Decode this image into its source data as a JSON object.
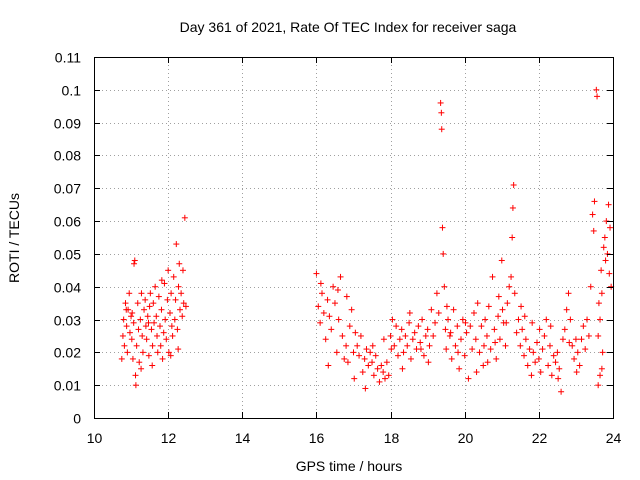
{
  "chart_data": {
    "type": "scatter",
    "title": "Day 361 of 2021, Rate Of TEC Index for receiver saga",
    "xlabel": "GPS time / hours",
    "ylabel": "ROTI / TECUs",
    "xlim": [
      10,
      24
    ],
    "ylim": [
      0,
      0.11
    ],
    "xticks": [
      10,
      12,
      14,
      16,
      18,
      20,
      22,
      24
    ],
    "yticks": [
      0,
      0.01,
      0.02,
      0.03,
      0.04,
      0.05,
      0.06,
      0.07,
      0.08,
      0.09,
      0.1,
      0.11
    ],
    "xtick_labels": [
      "10",
      "12",
      "14",
      "16",
      "18",
      "20",
      "22",
      "24"
    ],
    "ytick_labels": [
      "0",
      "0.01",
      "0.02",
      "0.03",
      "0.04",
      "0.05",
      "0.06",
      "0.07",
      "0.08",
      "0.09",
      "0.1",
      "0.11"
    ],
    "grid": true,
    "marker": "+",
    "color": "#ff0000",
    "series": [
      {
        "name": "ROTI",
        "points": [
          [
            10.75,
            0.018
          ],
          [
            10.78,
            0.025
          ],
          [
            10.8,
            0.03
          ],
          [
            10.82,
            0.022
          ],
          [
            10.85,
            0.035
          ],
          [
            10.88,
            0.028
          ],
          [
            10.9,
            0.02
          ],
          [
            10.92,
            0.033
          ],
          [
            10.95,
            0.038
          ],
          [
            10.97,
            0.026
          ],
          [
            11.0,
            0.031
          ],
          [
            11.02,
            0.024
          ],
          [
            11.05,
            0.018
          ],
          [
            11.07,
            0.029
          ],
          [
            11.08,
            0.047
          ],
          [
            11.1,
            0.048
          ],
          [
            11.12,
            0.013
          ],
          [
            11.13,
            0.01
          ],
          [
            11.15,
            0.022
          ],
          [
            11.18,
            0.035
          ],
          [
            11.2,
            0.027
          ],
          [
            11.22,
            0.017
          ],
          [
            11.25,
            0.03
          ],
          [
            11.28,
            0.038
          ],
          [
            11.3,
            0.025
          ],
          [
            11.32,
            0.02
          ],
          [
            11.35,
            0.033
          ],
          [
            11.38,
            0.036
          ],
          [
            11.4,
            0.028
          ],
          [
            11.42,
            0.024
          ],
          [
            11.45,
            0.031
          ],
          [
            11.48,
            0.019
          ],
          [
            11.5,
            0.034
          ],
          [
            11.52,
            0.038
          ],
          [
            11.55,
            0.027
          ],
          [
            11.58,
            0.022
          ],
          [
            11.6,
            0.035
          ],
          [
            11.62,
            0.029
          ],
          [
            11.65,
            0.04
          ],
          [
            11.68,
            0.031
          ],
          [
            11.7,
            0.025
          ],
          [
            11.72,
            0.02
          ],
          [
            11.75,
            0.037
          ],
          [
            11.78,
            0.028
          ],
          [
            11.8,
            0.022
          ],
          [
            11.82,
            0.033
          ],
          [
            11.85,
            0.018
          ],
          [
            11.88,
            0.026
          ],
          [
            11.9,
            0.041
          ],
          [
            11.92,
            0.03
          ],
          [
            11.95,
            0.024
          ],
          [
            11.98,
            0.036
          ],
          [
            12.0,
            0.045
          ],
          [
            12.02,
            0.02
          ],
          [
            12.05,
            0.032
          ],
          [
            12.08,
            0.038
          ],
          [
            12.1,
            0.028
          ],
          [
            12.12,
            0.025
          ],
          [
            12.15,
            0.043
          ],
          [
            12.18,
            0.03
          ],
          [
            12.2,
            0.036
          ],
          [
            12.22,
            0.053
          ],
          [
            12.25,
            0.027
          ],
          [
            12.28,
            0.04
          ],
          [
            12.3,
            0.047
          ],
          [
            12.32,
            0.033
          ],
          [
            12.35,
            0.038
          ],
          [
            12.38,
            0.031
          ],
          [
            12.4,
            0.045
          ],
          [
            12.42,
            0.035
          ],
          [
            12.45,
            0.061
          ],
          [
            12.48,
            0.034
          ],
          [
            11.03,
            0.032
          ],
          [
            11.27,
            0.015
          ],
          [
            11.57,
            0.016
          ],
          [
            11.83,
            0.042
          ],
          [
            12.07,
            0.019
          ],
          [
            12.27,
            0.021
          ],
          [
            10.87,
            0.033
          ],
          [
            11.47,
            0.029
          ],
          [
            16.0,
            0.044
          ],
          [
            16.05,
            0.034
          ],
          [
            16.1,
            0.029
          ],
          [
            16.15,
            0.038
          ],
          [
            16.2,
            0.032
          ],
          [
            16.25,
            0.024
          ],
          [
            16.3,
            0.036
          ],
          [
            16.35,
            0.031
          ],
          [
            16.4,
            0.027
          ],
          [
            16.45,
            0.04
          ],
          [
            16.5,
            0.035
          ],
          [
            16.55,
            0.02
          ],
          [
            16.6,
            0.03
          ],
          [
            16.65,
            0.043
          ],
          [
            16.7,
            0.025
          ],
          [
            16.75,
            0.018
          ],
          [
            16.8,
            0.022
          ],
          [
            16.85,
            0.017
          ],
          [
            16.9,
            0.028
          ],
          [
            16.95,
            0.033
          ],
          [
            17.0,
            0.02
          ],
          [
            17.05,
            0.026
          ],
          [
            17.1,
            0.022
          ],
          [
            17.15,
            0.019
          ],
          [
            17.2,
            0.025
          ],
          [
            17.25,
            0.014
          ],
          [
            17.3,
            0.018
          ],
          [
            17.35,
            0.021
          ],
          [
            17.4,
            0.016
          ],
          [
            17.45,
            0.02
          ],
          [
            17.5,
            0.017
          ],
          [
            17.55,
            0.013
          ],
          [
            17.6,
            0.019
          ],
          [
            17.65,
            0.015
          ],
          [
            17.7,
            0.011
          ],
          [
            17.75,
            0.016
          ],
          [
            17.8,
            0.014
          ],
          [
            17.85,
            0.012
          ],
          [
            17.9,
            0.017
          ],
          [
            17.95,
            0.013
          ],
          [
            18.0,
            0.025
          ],
          [
            18.05,
            0.03
          ],
          [
            18.1,
            0.022
          ],
          [
            18.15,
            0.028
          ],
          [
            18.2,
            0.019
          ],
          [
            18.25,
            0.024
          ],
          [
            18.3,
            0.027
          ],
          [
            18.35,
            0.02
          ],
          [
            18.4,
            0.025
          ],
          [
            18.45,
            0.022
          ],
          [
            18.5,
            0.029
          ],
          [
            18.55,
            0.018
          ],
          [
            18.6,
            0.024
          ],
          [
            18.65,
            0.026
          ],
          [
            18.7,
            0.021
          ],
          [
            18.75,
            0.028
          ],
          [
            18.8,
            0.023
          ],
          [
            18.85,
            0.03
          ],
          [
            18.9,
            0.019
          ],
          [
            18.95,
            0.025
          ],
          [
            19.0,
            0.027
          ],
          [
            19.05,
            0.022
          ],
          [
            19.1,
            0.033
          ],
          [
            19.15,
            0.025
          ],
          [
            19.2,
            0.029
          ],
          [
            19.25,
            0.038
          ],
          [
            19.3,
            0.032
          ],
          [
            19.35,
            0.096
          ],
          [
            19.37,
            0.093
          ],
          [
            19.38,
            0.088
          ],
          [
            19.4,
            0.058
          ],
          [
            19.42,
            0.05
          ],
          [
            19.45,
            0.04
          ],
          [
            19.48,
            0.027
          ],
          [
            19.5,
            0.021
          ],
          [
            19.55,
            0.03
          ],
          [
            19.6,
            0.025
          ],
          [
            19.65,
            0.018
          ],
          [
            19.7,
            0.033
          ],
          [
            19.75,
            0.022
          ],
          [
            19.8,
            0.028
          ],
          [
            19.85,
            0.015
          ],
          [
            19.9,
            0.024
          ],
          [
            19.95,
            0.03
          ],
          [
            20.0,
            0.019
          ],
          [
            20.05,
            0.026
          ],
          [
            20.1,
            0.012
          ],
          [
            20.15,
            0.028
          ],
          [
            20.2,
            0.021
          ],
          [
            20.25,
            0.032
          ],
          [
            20.3,
            0.024
          ],
          [
            20.35,
            0.035
          ],
          [
            20.4,
            0.02
          ],
          [
            20.45,
            0.028
          ],
          [
            20.5,
            0.016
          ],
          [
            20.55,
            0.03
          ],
          [
            20.6,
            0.025
          ],
          [
            20.65,
            0.034
          ],
          [
            20.7,
            0.021
          ],
          [
            20.75,
            0.043
          ],
          [
            20.8,
            0.027
          ],
          [
            20.85,
            0.018
          ],
          [
            20.9,
            0.031
          ],
          [
            20.95,
            0.024
          ],
          [
            21.0,
            0.048
          ],
          [
            21.05,
            0.029
          ],
          [
            21.1,
            0.022
          ],
          [
            21.15,
            0.035
          ],
          [
            21.2,
            0.04
          ],
          [
            21.25,
            0.043
          ],
          [
            21.28,
            0.055
          ],
          [
            21.3,
            0.064
          ],
          [
            21.32,
            0.071
          ],
          [
            21.35,
            0.038
          ],
          [
            21.4,
            0.026
          ],
          [
            21.45,
            0.03
          ],
          [
            21.5,
            0.022
          ],
          [
            21.55,
            0.027
          ],
          [
            21.6,
            0.019
          ],
          [
            21.65,
            0.024
          ],
          [
            21.7,
            0.016
          ],
          [
            21.75,
            0.021
          ],
          [
            21.8,
            0.013
          ],
          [
            21.85,
            0.02
          ],
          [
            21.9,
            0.017
          ],
          [
            21.95,
            0.023
          ],
          [
            22.0,
            0.018
          ],
          [
            22.05,
            0.014
          ],
          [
            22.1,
            0.021
          ],
          [
            22.15,
            0.025
          ],
          [
            22.2,
            0.03
          ],
          [
            22.25,
            0.016
          ],
          [
            22.3,
            0.022
          ],
          [
            22.35,
            0.013
          ],
          [
            22.4,
            0.019
          ],
          [
            22.45,
            0.017
          ],
          [
            22.5,
            0.02
          ],
          [
            22.55,
            0.015
          ],
          [
            22.6,
            0.008
          ],
          [
            22.65,
            0.024
          ],
          [
            22.7,
            0.027
          ],
          [
            22.75,
            0.033
          ],
          [
            22.8,
            0.038
          ],
          [
            22.85,
            0.03
          ],
          [
            22.9,
            0.022
          ],
          [
            22.95,
            0.018
          ],
          [
            23.0,
            0.024
          ],
          [
            23.05,
            0.02
          ],
          [
            23.1,
            0.016
          ],
          [
            23.15,
            0.024
          ],
          [
            23.2,
            0.028
          ],
          [
            23.25,
            0.021
          ],
          [
            23.3,
            0.03
          ],
          [
            23.35,
            0.025
          ],
          [
            23.4,
            0.04
          ],
          [
            23.45,
            0.062
          ],
          [
            23.48,
            0.057
          ],
          [
            23.5,
            0.066
          ],
          [
            23.55,
            0.1
          ],
          [
            23.57,
            0.098
          ],
          [
            23.6,
            0.025
          ],
          [
            23.62,
            0.035
          ],
          [
            23.65,
            0.03
          ],
          [
            23.68,
            0.045
          ],
          [
            23.7,
            0.038
          ],
          [
            23.72,
            0.02
          ],
          [
            23.75,
            0.052
          ],
          [
            23.78,
            0.055
          ],
          [
            23.8,
            0.048
          ],
          [
            23.82,
            0.06
          ],
          [
            23.85,
            0.05
          ],
          [
            23.88,
            0.065
          ],
          [
            23.9,
            0.044
          ],
          [
            23.92,
            0.058
          ],
          [
            23.95,
            0.04
          ],
          [
            23.6,
            0.01
          ],
          [
            23.65,
            0.013
          ],
          [
            23.7,
            0.015
          ],
          [
            16.12,
            0.041
          ],
          [
            16.58,
            0.039
          ],
          [
            17.02,
            0.012
          ],
          [
            17.52,
            0.022
          ],
          [
            18.02,
            0.021
          ],
          [
            18.52,
            0.032
          ],
          [
            19.02,
            0.017
          ],
          [
            19.52,
            0.034
          ],
          [
            20.02,
            0.029
          ],
          [
            20.52,
            0.022
          ],
          [
            21.02,
            0.033
          ],
          [
            21.52,
            0.034
          ],
          [
            22.02,
            0.027
          ],
          [
            22.52,
            0.012
          ],
          [
            23.02,
            0.014
          ],
          [
            16.32,
            0.016
          ],
          [
            16.82,
            0.037
          ],
          [
            17.32,
            0.009
          ],
          [
            17.82,
            0.024
          ],
          [
            18.32,
            0.015
          ],
          [
            18.82,
            0.021
          ],
          [
            19.82,
            0.02
          ],
          [
            20.32,
            0.014
          ],
          [
            20.82,
            0.023
          ],
          [
            21.82,
            0.029
          ],
          [
            22.32,
            0.028
          ],
          [
            22.82,
            0.023
          ],
          [
            19.62,
            0.026
          ],
          [
            20.62,
            0.017
          ],
          [
            21.12,
            0.029
          ],
          [
            21.62,
            0.031
          ],
          [
            20.92,
            0.037
          ]
        ]
      }
    ]
  }
}
